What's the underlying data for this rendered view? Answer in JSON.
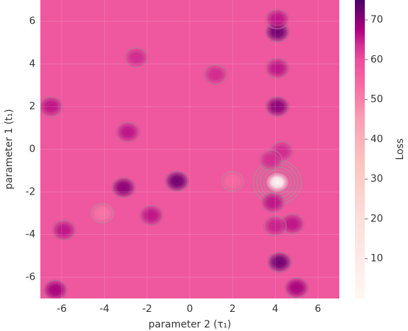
{
  "chart_data": {
    "type": "contour",
    "xlabel": "parameter 2 (τ₁)",
    "ylabel": "parameter 1 (t₁)",
    "xlim": [
      -7,
      7
    ],
    "ylim": [
      -7,
      7
    ],
    "xticks": [
      -6,
      -4,
      -2,
      0,
      2,
      4,
      6
    ],
    "yticks": [
      -6,
      -4,
      -2,
      0,
      2,
      4,
      6
    ],
    "background_value": 58,
    "x": [
      4.1,
      4.1,
      4.1,
      4.1,
      4.1,
      4.2,
      4.8,
      -0.6,
      -3.1,
      -2.9,
      -6.3,
      5.0,
      4.3,
      3.9,
      -5.9,
      -1.8,
      4.0,
      -2.5,
      3.8,
      -4.1,
      2.0,
      -6.5,
      1.2
    ],
    "y": [
      -1.55,
      5.5,
      6.1,
      2.0,
      3.8,
      -5.3,
      -3.5,
      -1.5,
      -1.8,
      0.8,
      -6.6,
      -6.5,
      -0.1,
      -2.5,
      -3.8,
      -3.1,
      -3.6,
      4.3,
      -0.5,
      -3.0,
      -1.5,
      2.0,
      3.5
    ],
    "values": [
      0,
      72,
      66,
      70,
      66,
      72,
      66,
      72,
      70,
      66,
      68,
      68,
      64,
      66,
      66,
      66,
      65,
      64,
      64,
      52,
      54,
      66,
      64
    ],
    "colorbar_label": "Loss",
    "clim": [
      0,
      75
    ],
    "cticks": [
      10,
      20,
      30,
      40,
      50,
      60,
      70
    ]
  }
}
